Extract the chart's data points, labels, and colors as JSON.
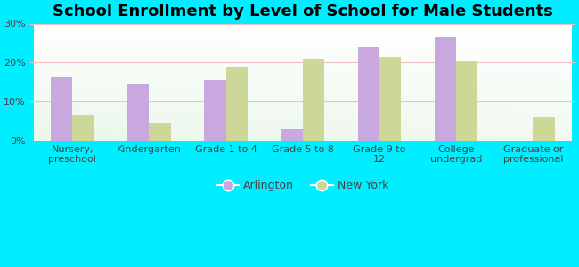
{
  "title": "School Enrollment by Level of School for Male Students",
  "categories": [
    "Nursery,\npreschool",
    "Kindergarten",
    "Grade 1 to 4",
    "Grade 5 to 8",
    "Grade 9 to\n12",
    "College\nundergrad",
    "Graduate or\nprofessional"
  ],
  "arlington": [
    16.5,
    14.5,
    15.5,
    3.0,
    24.0,
    26.5,
    0.0
  ],
  "new_york": [
    6.5,
    4.5,
    19.0,
    21.0,
    21.5,
    20.5,
    6.0
  ],
  "arlington_color": "#c9a8e0",
  "new_york_color": "#cdd898",
  "background_outer": "#00eeff",
  "background_inner_top": "#e8f5e9",
  "background_inner_bottom": "#d4eeda",
  "ylim": [
    0,
    30
  ],
  "yticks": [
    0,
    10,
    20,
    30
  ],
  "ytick_labels": [
    "0%",
    "10%",
    "20%",
    "30%"
  ],
  "title_fontsize": 13,
  "tick_fontsize": 8,
  "legend_fontsize": 9,
  "bar_width": 0.28
}
